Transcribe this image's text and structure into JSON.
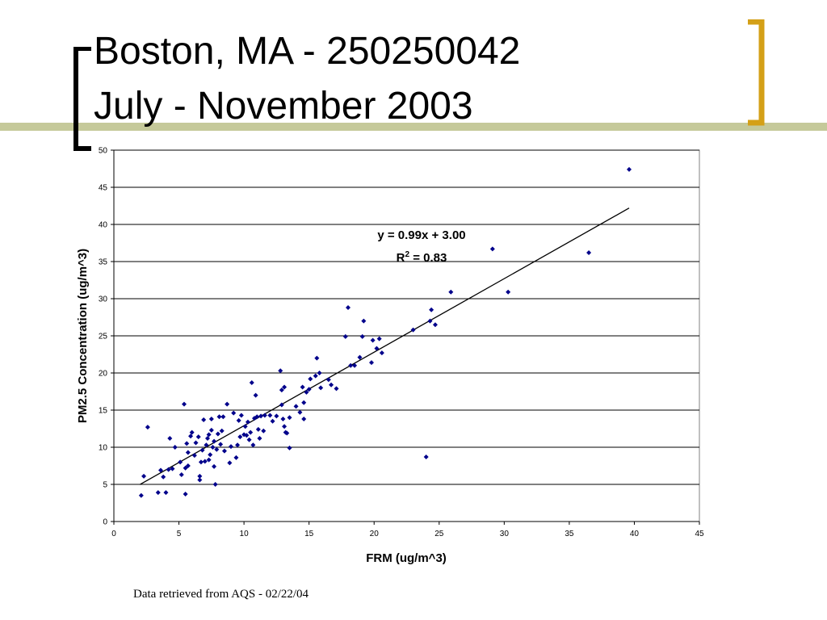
{
  "slide": {
    "title_line1": "Boston, MA - 250250042",
    "title_line2": "July - November 2003",
    "footer": "Data retrieved from AQS - 02/22/04"
  },
  "colors": {
    "accent_bar": "#c5c99a",
    "bracket_left": "#000000",
    "bracket_right": "#d4a017",
    "points": "#00008b",
    "trendline": "#000000",
    "gridlines": "#000000"
  },
  "chart_data": {
    "type": "scatter",
    "xlabel": "FRM (ug/m^3)",
    "ylabel": "PM2.5 Concentration (ug/m^3)",
    "xlim": [
      0,
      45
    ],
    "ylim": [
      0,
      50
    ],
    "xticks": [
      0,
      5,
      10,
      15,
      20,
      25,
      30,
      35,
      40,
      45
    ],
    "yticks": [
      0,
      5,
      10,
      15,
      20,
      25,
      30,
      35,
      40,
      45,
      50
    ],
    "grid": "horizontal",
    "legend": "none",
    "annotation": {
      "equation": "y = 0.99x + 3.00",
      "r2_prefix": "R",
      "r2_sup": "2",
      "r2_suffix": " = 0.83"
    },
    "trendline": {
      "slope": 0.99,
      "intercept": 3.0,
      "x_range": [
        2.0,
        39.6
      ]
    },
    "points": [
      [
        2.1,
        3.5
      ],
      [
        2.3,
        6.1
      ],
      [
        2.6,
        12.7
      ],
      [
        3.4,
        3.9
      ],
      [
        3.6,
        6.9
      ],
      [
        3.8,
        6.0
      ],
      [
        4.0,
        3.9
      ],
      [
        4.2,
        7.0
      ],
      [
        4.3,
        11.2
      ],
      [
        4.5,
        7.1
      ],
      [
        4.7,
        10.0
      ],
      [
        5.1,
        8.0
      ],
      [
        5.2,
        6.3
      ],
      [
        5.4,
        15.8
      ],
      [
        5.5,
        3.7
      ],
      [
        5.5,
        7.2
      ],
      [
        5.6,
        10.5
      ],
      [
        5.7,
        7.5
      ],
      [
        5.7,
        9.3
      ],
      [
        5.9,
        11.5
      ],
      [
        6.0,
        12.0
      ],
      [
        6.2,
        8.9
      ],
      [
        6.3,
        10.6
      ],
      [
        6.5,
        11.4
      ],
      [
        6.6,
        5.6
      ],
      [
        6.6,
        6.1
      ],
      [
        6.7,
        8.0
      ],
      [
        6.8,
        9.6
      ],
      [
        6.9,
        13.7
      ],
      [
        7.0,
        8.1
      ],
      [
        7.1,
        10.3
      ],
      [
        7.2,
        11.2
      ],
      [
        7.3,
        8.3
      ],
      [
        7.3,
        11.7
      ],
      [
        7.4,
        9.0
      ],
      [
        7.5,
        12.3
      ],
      [
        7.5,
        13.8
      ],
      [
        7.6,
        10.0
      ],
      [
        7.7,
        7.4
      ],
      [
        7.7,
        10.8
      ],
      [
        7.8,
        5.0
      ],
      [
        7.9,
        9.7
      ],
      [
        8.0,
        11.8
      ],
      [
        8.1,
        14.1
      ],
      [
        8.2,
        10.4
      ],
      [
        8.3,
        12.2
      ],
      [
        8.4,
        14.1
      ],
      [
        8.5,
        9.5
      ],
      [
        8.7,
        15.8
      ],
      [
        8.9,
        7.9
      ],
      [
        9.0,
        10.1
      ],
      [
        9.2,
        14.6
      ],
      [
        9.4,
        8.6
      ],
      [
        9.5,
        10.3
      ],
      [
        9.6,
        13.6
      ],
      [
        9.7,
        11.4
      ],
      [
        9.8,
        14.3
      ],
      [
        10.0,
        11.7
      ],
      [
        10.1,
        12.8
      ],
      [
        10.2,
        11.6
      ],
      [
        10.3,
        13.4
      ],
      [
        10.4,
        11.0
      ],
      [
        10.5,
        12.0
      ],
      [
        10.6,
        18.7
      ],
      [
        10.7,
        10.3
      ],
      [
        10.8,
        13.9
      ],
      [
        10.9,
        17.0
      ],
      [
        11.0,
        14.1
      ],
      [
        11.1,
        12.4
      ],
      [
        11.2,
        11.2
      ],
      [
        11.3,
        14.2
      ],
      [
        11.5,
        12.2
      ],
      [
        11.6,
        14.3
      ],
      [
        12.0,
        14.3
      ],
      [
        12.2,
        13.5
      ],
      [
        12.5,
        14.2
      ],
      [
        12.8,
        20.3
      ],
      [
        12.9,
        15.7
      ],
      [
        12.9,
        17.7
      ],
      [
        13.0,
        13.8
      ],
      [
        13.1,
        18.1
      ],
      [
        13.1,
        12.8
      ],
      [
        13.2,
        12.0
      ],
      [
        13.3,
        11.9
      ],
      [
        13.5,
        14.0
      ],
      [
        13.5,
        9.9
      ],
      [
        14.0,
        15.5
      ],
      [
        14.3,
        14.7
      ],
      [
        14.5,
        18.1
      ],
      [
        14.6,
        16.0
      ],
      [
        14.6,
        13.8
      ],
      [
        14.8,
        17.4
      ],
      [
        15.0,
        17.8
      ],
      [
        15.1,
        19.2
      ],
      [
        15.5,
        19.6
      ],
      [
        15.6,
        22.0
      ],
      [
        15.8,
        20.0
      ],
      [
        15.9,
        18.0
      ],
      [
        16.5,
        19.1
      ],
      [
        16.7,
        18.4
      ],
      [
        17.1,
        17.9
      ],
      [
        17.8,
        24.9
      ],
      [
        18.0,
        28.8
      ],
      [
        18.2,
        21.0
      ],
      [
        18.5,
        21.0
      ],
      [
        18.9,
        22.1
      ],
      [
        19.1,
        24.9
      ],
      [
        19.2,
        27.0
      ],
      [
        19.8,
        21.4
      ],
      [
        19.9,
        24.4
      ],
      [
        20.2,
        23.3
      ],
      [
        20.4,
        24.6
      ],
      [
        20.6,
        22.7
      ],
      [
        23.0,
        25.8
      ],
      [
        24.0,
        8.7
      ],
      [
        24.3,
        27.0
      ],
      [
        24.4,
        28.5
      ],
      [
        24.7,
        26.5
      ],
      [
        25.9,
        30.9
      ],
      [
        29.1,
        36.7
      ],
      [
        30.3,
        30.9
      ],
      [
        36.5,
        36.2
      ],
      [
        39.6,
        47.4
      ]
    ]
  }
}
